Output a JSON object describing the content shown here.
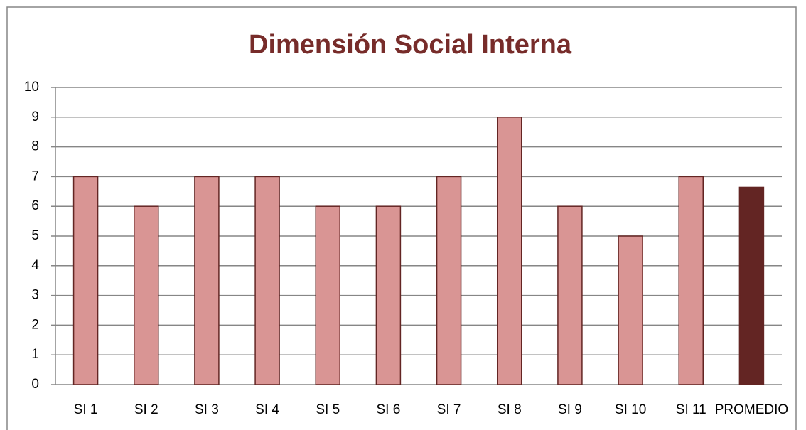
{
  "chart_data": {
    "type": "bar",
    "title": "Dimensión Social Interna",
    "categories": [
      "SI 1",
      "SI 2",
      "SI 3",
      "SI 4",
      "SI 5",
      "SI 6",
      "SI 7",
      "SI 8",
      "SI 9",
      "SI 10",
      "SI 11",
      "PROMEDIO"
    ],
    "values": [
      7,
      6,
      7,
      7,
      6,
      6,
      7,
      9,
      6,
      5,
      7,
      6.64
    ],
    "colors": [
      "#d99594",
      "#d99594",
      "#d99594",
      "#d99594",
      "#d99594",
      "#d99594",
      "#d99594",
      "#d99594",
      "#d99594",
      "#d99594",
      "#d99594",
      "#632523"
    ],
    "ylim": [
      0,
      10
    ],
    "yticks": [
      0,
      1,
      2,
      3,
      4,
      5,
      6,
      7,
      8,
      9,
      10
    ],
    "grid": true
  }
}
